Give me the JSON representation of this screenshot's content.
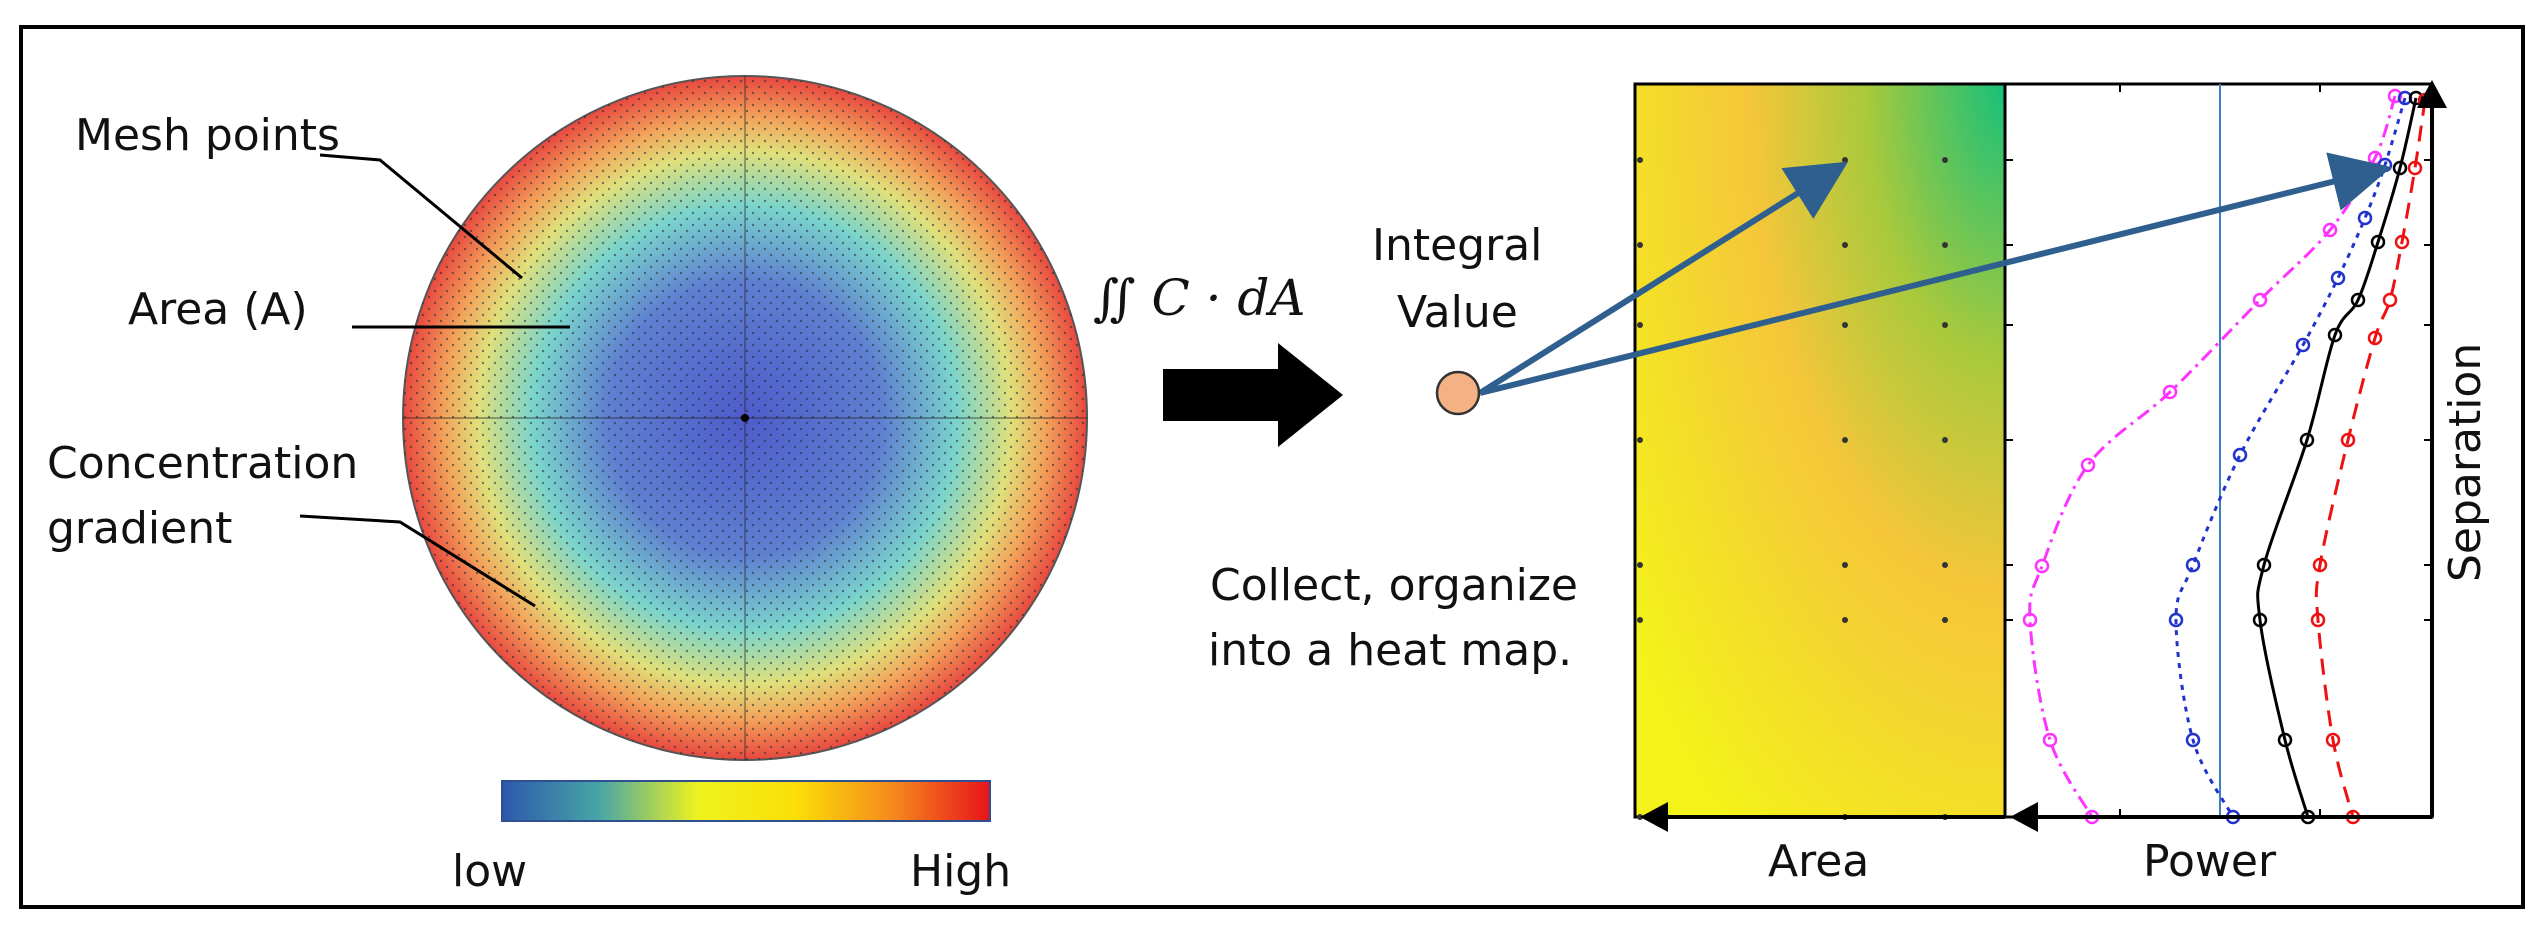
{
  "labels": {
    "mesh_points": "Mesh points",
    "area_a": "Area (A)",
    "concentration_line1": "Concentration",
    "concentration_line2": "gradient",
    "integral_formula": "∬ C · dA",
    "integral_value_line1": "Integral",
    "integral_value_line2": "Value",
    "collect_line1": "Collect, organize",
    "collect_line2": "into a heat map."
  },
  "colorbar": {
    "low_label": "low",
    "high_label": "High",
    "gradient_colors": [
      "#2c58ad",
      "#48a6a6",
      "#eef21e",
      "#fbdf08",
      "#f58a1c",
      "#e8131c"
    ]
  },
  "disk": {
    "center_color": "#4f5ccb",
    "mid_color": "#7ad4cc",
    "rim_color": "#e8483f",
    "mesh_color": "#1a2a33"
  },
  "heatmap": {
    "x_axis_label": "Area",
    "colors": {
      "low": "#f3f21a",
      "mid": "#f5c63a",
      "high": "#18c07a"
    }
  },
  "chart_data": {
    "type": "line",
    "x_axis_label": "Power",
    "y_axis_label": "Separation",
    "series": [
      {
        "color": "#ff33ff",
        "line": "dash-dot"
      },
      {
        "color": "#2233cc",
        "line": "dotted"
      },
      {
        "color": "#000000",
        "line": "solid"
      },
      {
        "color": "#ee1111",
        "line": "dashed"
      }
    ],
    "reference_line_color": "#3b7fc4"
  }
}
